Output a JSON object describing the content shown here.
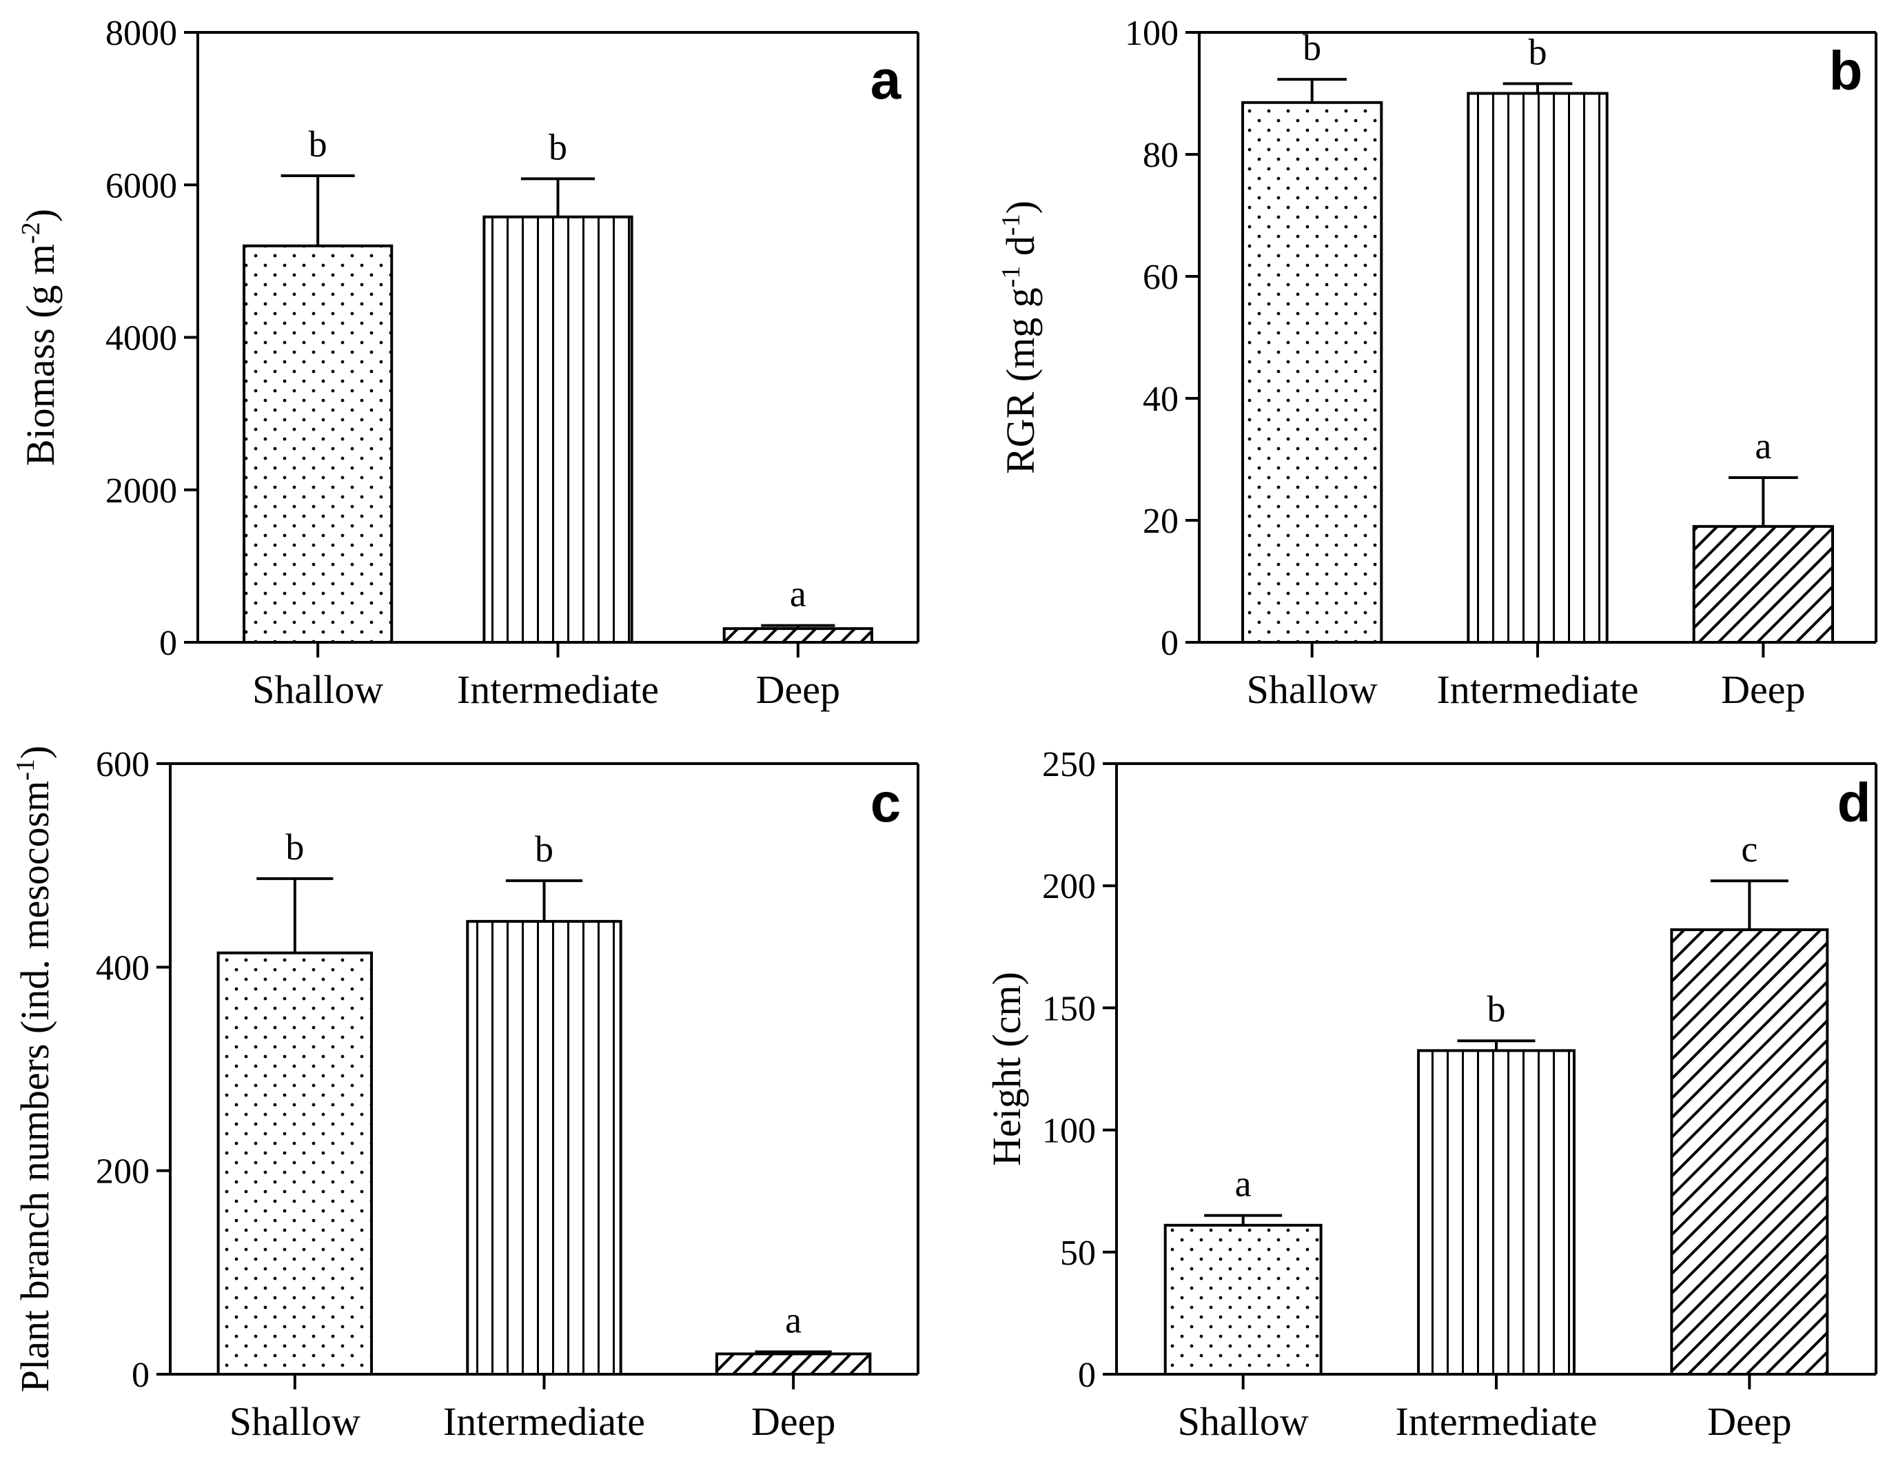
{
  "chart_data": [
    {
      "type": "bar",
      "panel": "a",
      "ylabel": "Biomass  (g m",
      "ylabel_sup": "-2",
      "ylabel_tail": ")",
      "categories": [
        "Shallow",
        "Intermediate",
        "Deep"
      ],
      "values": [
        5200,
        5580,
        180
      ],
      "errors": [
        920,
        500,
        40
      ],
      "significance": [
        "b",
        "b",
        "a"
      ],
      "patterns": [
        "dots",
        "vlines",
        "hatch"
      ],
      "ylim": [
        0,
        8000
      ],
      "yticks": [
        0,
        2000,
        4000,
        6000,
        8000
      ],
      "ytick_labels": [
        "0",
        "2000",
        "4000",
        "6000",
        "8000"
      ],
      "closed_box": true
    },
    {
      "type": "bar",
      "panel": "b",
      "ylabel": "RGR (mg g",
      "ylabel_sup": "-1",
      "ylabel_mid": " d",
      "ylabel_sup2": "-1",
      "ylabel_tail": ")",
      "categories": [
        "Shallow",
        "Intermediate",
        "Deep"
      ],
      "values": [
        88.5,
        90,
        19
      ],
      "errors": [
        3.8,
        1.6,
        8
      ],
      "significance": [
        "b",
        "b",
        "a"
      ],
      "patterns": [
        "dots",
        "vlines",
        "hatch"
      ],
      "ylim": [
        0,
        100
      ],
      "yticks": [
        0,
        20,
        40,
        60,
        80,
        100
      ],
      "ytick_labels": [
        "0",
        "20",
        "40",
        "60",
        "80",
        "100"
      ],
      "closed_box": true
    },
    {
      "type": "bar",
      "panel": "c",
      "ylabel": "Plant branch numbers (ind. mesocosm",
      "ylabel_sup": "-1",
      "ylabel_tail": ")",
      "categories": [
        "Shallow",
        "Intermediate",
        "Deep"
      ],
      "values": [
        414,
        445,
        20
      ],
      "errors": [
        73,
        40,
        2
      ],
      "significance": [
        "b",
        "b",
        "a"
      ],
      "patterns": [
        "dots",
        "vlines",
        "hatch"
      ],
      "ylim": [
        0,
        600
      ],
      "yticks": [
        0,
        200,
        400,
        600
      ],
      "ytick_labels": [
        "0",
        "200",
        "400",
        "600"
      ],
      "closed_box": true
    },
    {
      "type": "bar",
      "panel": "d",
      "ylabel": "Height (cm)",
      "categories": [
        "Shallow",
        "Intermediate",
        "Deep"
      ],
      "values": [
        61,
        132.5,
        182
      ],
      "errors": [
        4,
        4,
        20
      ],
      "significance": [
        "a",
        "b",
        "c"
      ],
      "patterns": [
        "dots",
        "vlines",
        "hatch"
      ],
      "ylim": [
        0,
        250
      ],
      "yticks": [
        0,
        50,
        100,
        150,
        200,
        250
      ],
      "ytick_labels": [
        "0",
        "50",
        "100",
        "150",
        "200",
        "250"
      ],
      "closed_box": true
    }
  ]
}
